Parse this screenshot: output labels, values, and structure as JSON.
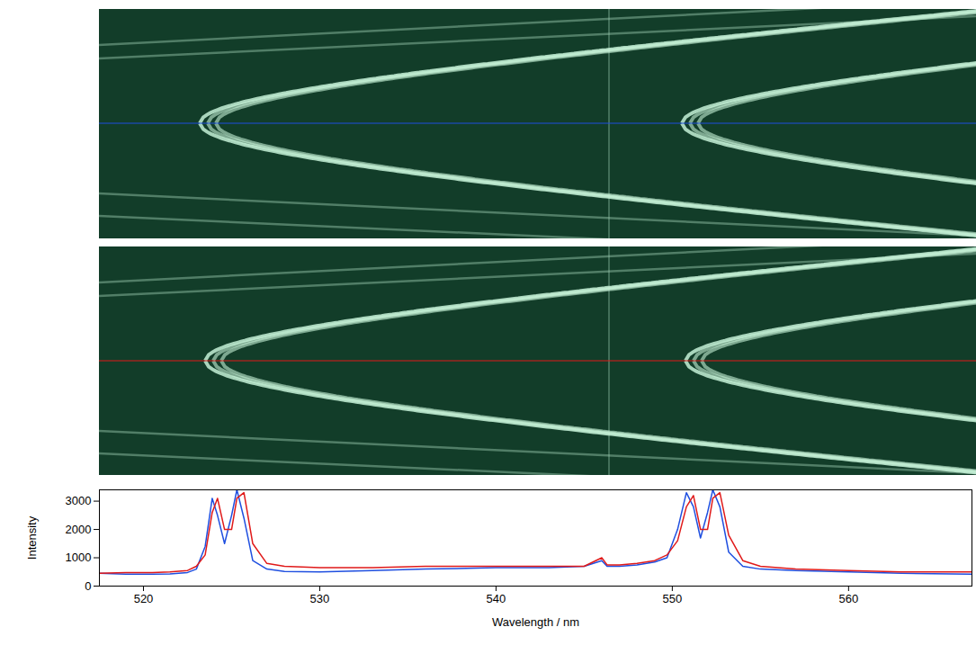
{
  "chart_data": {
    "type": "line",
    "x_label": "Wavelength / nm",
    "y_label": "Intensity",
    "x": [
      517.5,
      519,
      520.5,
      521.5,
      522.5,
      523,
      523.5,
      523.9,
      524.2,
      524.6,
      525,
      525.3,
      525.7,
      526.2,
      527,
      528,
      530,
      533,
      536,
      540,
      543,
      545,
      546,
      546.3,
      547,
      548,
      549,
      549.7,
      550.3,
      550.8,
      551.2,
      551.6,
      552,
      552.3,
      552.7,
      553.2,
      554,
      555,
      557,
      560,
      563,
      567
    ],
    "series": [
      {
        "color": "#1f4fe0",
        "values": [
          450,
          420,
          420,
          430,
          480,
          600,
          1400,
          3100,
          2500,
          1500,
          2500,
          3400,
          2400,
          900,
          600,
          520,
          500,
          550,
          600,
          650,
          650,
          700,
          900,
          700,
          700,
          750,
          850,
          1000,
          2000,
          3300,
          2800,
          1700,
          2600,
          3400,
          2800,
          1200,
          700,
          600,
          550,
          500,
          450,
          420
        ]
      },
      {
        "color": "#e01a1a",
        "values": [
          450,
          480,
          480,
          500,
          550,
          700,
          1100,
          2600,
          3100,
          2000,
          2000,
          3100,
          3300,
          1500,
          800,
          700,
          650,
          650,
          700,
          700,
          700,
          700,
          1000,
          750,
          750,
          800,
          900,
          1100,
          1600,
          2800,
          3200,
          2000,
          2000,
          3100,
          3300,
          1800,
          900,
          700,
          600,
          550,
          500,
          500
        ]
      }
    ],
    "xlim": [
      517.5,
      567
    ],
    "ylim": [
      0,
      3400
    ],
    "xticks": [
      520,
      530,
      540,
      550,
      560
    ],
    "yticks": [
      0,
      1000,
      2000,
      3000
    ],
    "grid": false
  }
}
